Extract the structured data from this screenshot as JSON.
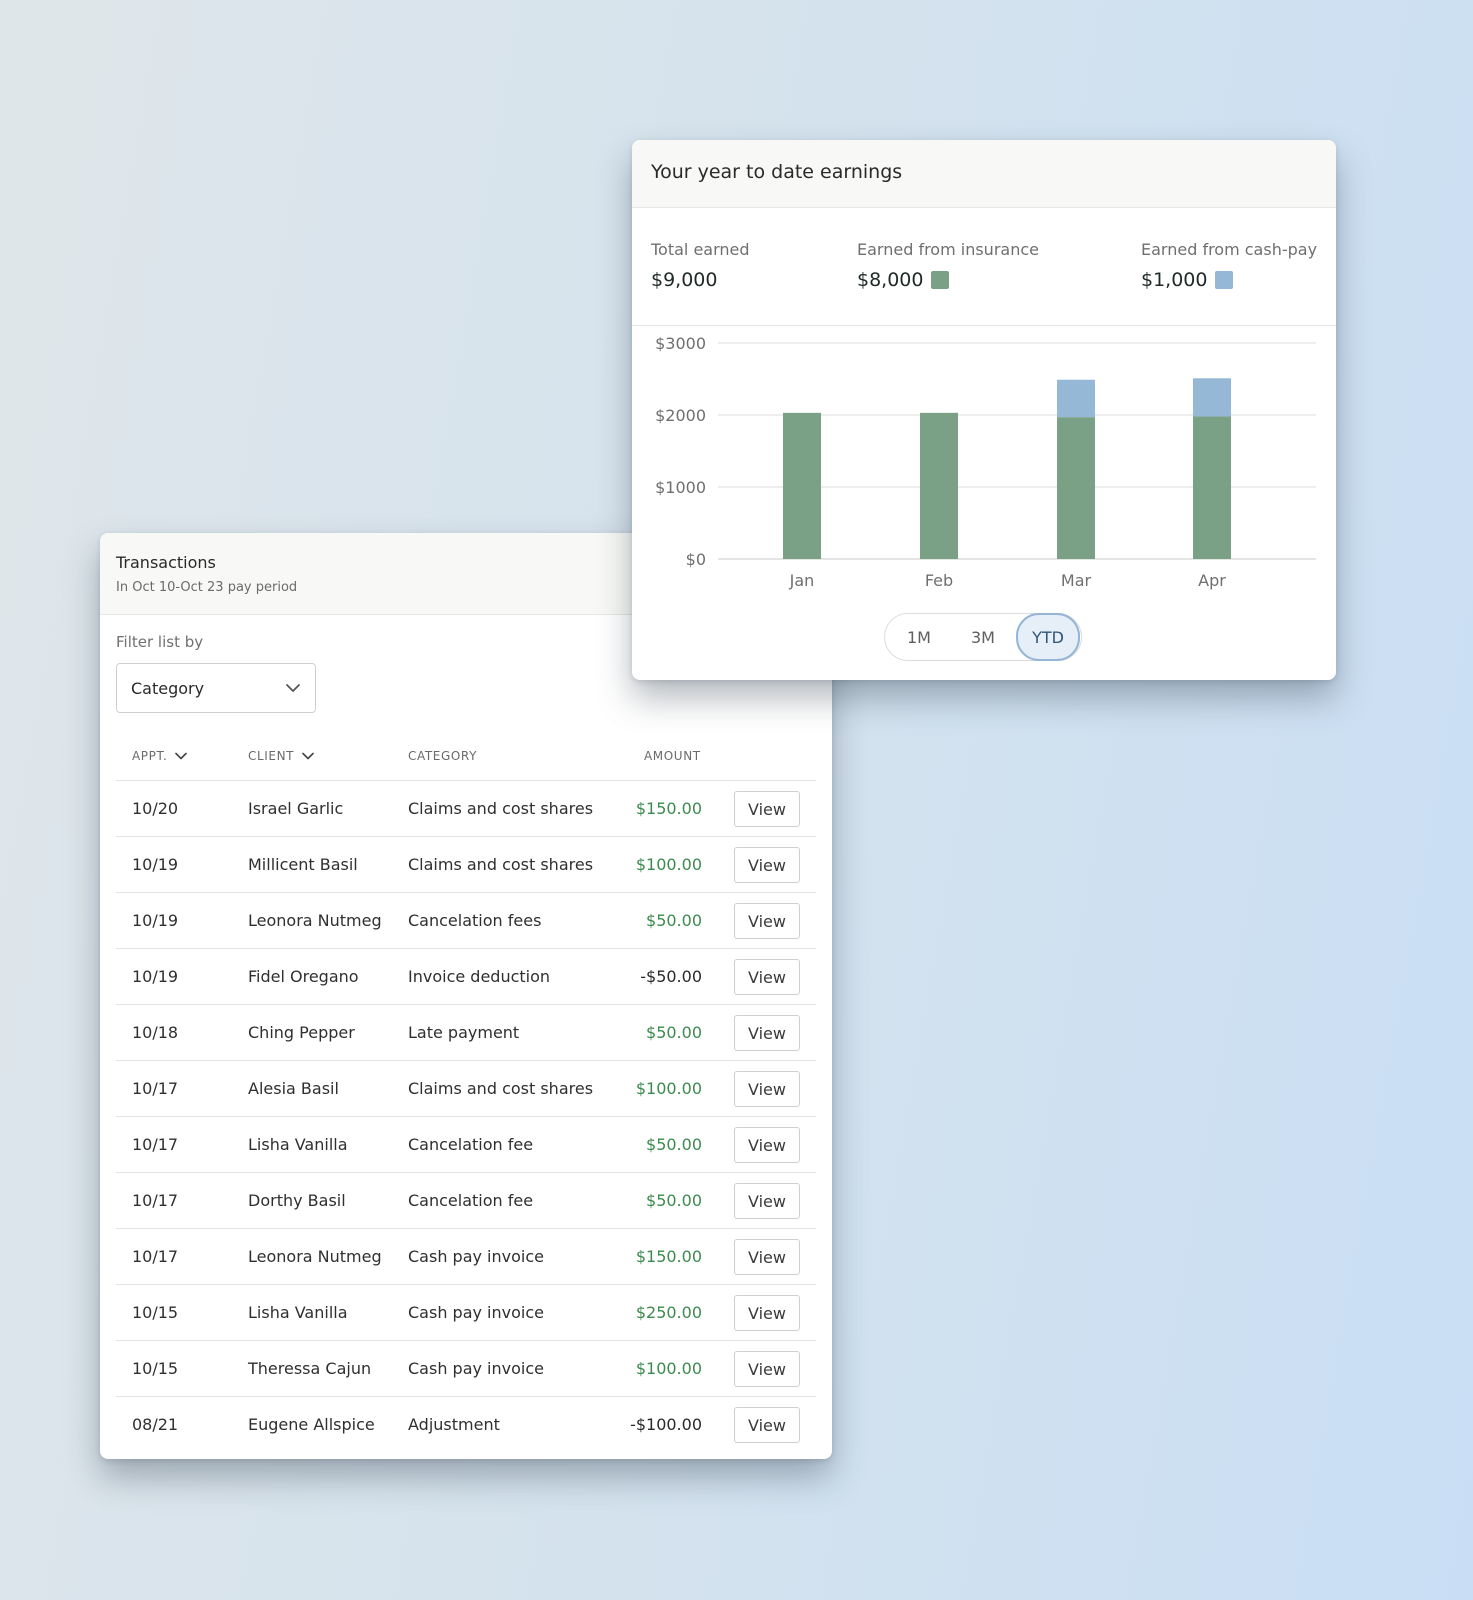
{
  "transactions": {
    "title": "Transactions",
    "subtitle": "In Oct 10-Oct 23 pay period",
    "filter_label": "Filter list by",
    "filter_value": "Category",
    "columns": {
      "appt": "APPT.",
      "client": "CLIENT",
      "category": "CATEGORY",
      "amount": "AMOUNT"
    },
    "view_label": "View",
    "rows": [
      {
        "appt": "10/20",
        "client": "Israel Garlic",
        "category": "Claims and cost shares",
        "amount": "$150.00"
      },
      {
        "appt": "10/19",
        "client": "Millicent Basil",
        "category": "Claims and cost shares",
        "amount": "$100.00"
      },
      {
        "appt": "10/19",
        "client": "Leonora Nutmeg",
        "category": "Cancelation fees",
        "amount": "$50.00"
      },
      {
        "appt": "10/19",
        "client": "Fidel Oregano",
        "category": "Invoice deduction",
        "amount": "-$50.00"
      },
      {
        "appt": "10/18",
        "client": "Ching Pepper",
        "category": "Late payment",
        "amount": "$50.00"
      },
      {
        "appt": "10/17",
        "client": "Alesia Basil",
        "category": "Claims and cost shares",
        "amount": "$100.00"
      },
      {
        "appt": "10/17",
        "client": "Lisha Vanilla",
        "category": "Cancelation fee",
        "amount": "$50.00"
      },
      {
        "appt": "10/17",
        "client": "Dorthy Basil",
        "category": "Cancelation fee",
        "amount": "$50.00"
      },
      {
        "appt": "10/17",
        "client": "Leonora Nutmeg",
        "category": "Cash pay invoice",
        "amount": "$150.00"
      },
      {
        "appt": "10/15",
        "client": "Lisha Vanilla",
        "category": "Cash pay invoice",
        "amount": "$250.00"
      },
      {
        "appt": "10/15",
        "client": "Theressa Cajun",
        "category": "Cash pay invoice",
        "amount": "$100.00"
      },
      {
        "appt": "08/21",
        "client": "Eugene Allspice",
        "category": "Adjustment",
        "amount": "-$100.00"
      }
    ]
  },
  "earnings": {
    "title": "Your year to date earnings",
    "stats": [
      {
        "label": "Total earned",
        "value": "$9,000"
      },
      {
        "label": "Earned from insurance",
        "value": "$8,000",
        "color": "#7aa085"
      },
      {
        "label": "Earned from cash-pay",
        "value": "$1,000",
        "color": "#95b8d6"
      }
    ],
    "range_options": [
      "1M",
      "3M",
      "YTD"
    ],
    "range_selected": "YTD"
  },
  "chart_data": {
    "type": "bar",
    "stacked": true,
    "categories": [
      "Jan",
      "Feb",
      "Mar",
      "Apr"
    ],
    "series": [
      {
        "name": "Earned from insurance",
        "values": [
          2030,
          2030,
          1970,
          1980
        ],
        "color": "#7aa085"
      },
      {
        "name": "Earned from cash-pay",
        "values": [
          0,
          0,
          520,
          530
        ],
        "color": "#95b8d6"
      }
    ],
    "yticks": [
      "$0",
      "$1000",
      "$2000",
      "$3000"
    ],
    "ylim": [
      0,
      3000
    ],
    "grid": true
  },
  "colors": {
    "positive_amount": "#3c8a4e",
    "negative_amount": "#2a2a2a"
  }
}
